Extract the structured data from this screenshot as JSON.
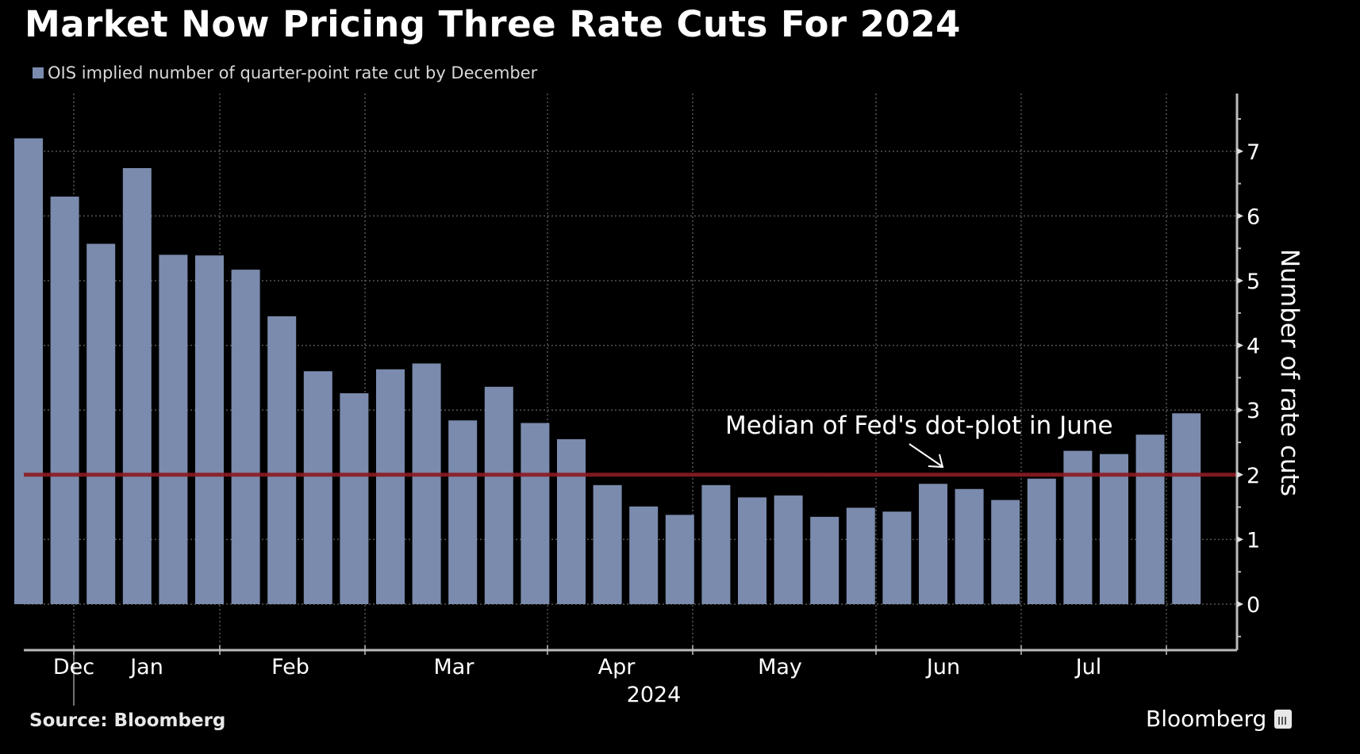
{
  "header": {
    "title": "Market Now Pricing Three Rate Cuts For 2024"
  },
  "footer": {
    "source": "Source: Bloomberg",
    "brand": "Bloomberg"
  },
  "colors": {
    "background": "#000000",
    "bar": "#7a8bad",
    "reference_line": "#8b1a22",
    "grid": "#555555",
    "axis": "#bbbbbb",
    "text": "#ffffff"
  },
  "chart_data": {
    "type": "bar",
    "title": "Market Now Pricing Three Rate Cuts For 2024",
    "legend": [
      {
        "name": "OIS implied number of quarter-point rate cut by December",
        "color": "#7a8bad"
      }
    ],
    "legend_position": "top-left",
    "xlabel": "",
    "ylabel": "Number of rate cuts",
    "y_axis_side": "right",
    "ylim": [
      -0.7,
      7.9
    ],
    "yticks": [
      0,
      1,
      2,
      3,
      4,
      5,
      6,
      7
    ],
    "x_tick_labels": [
      "Dec",
      "Jan",
      "Feb",
      "Mar",
      "Apr",
      "May",
      "Jun",
      "Jul"
    ],
    "x_year_label": "2024",
    "grid": true,
    "series": [
      {
        "name": "OIS implied number of quarter-point rate cut by December",
        "values": [
          7.2,
          6.3,
          5.57,
          6.74,
          5.4,
          5.39,
          5.17,
          4.45,
          3.6,
          3.26,
          3.63,
          3.72,
          2.84,
          3.36,
          2.8,
          2.55,
          1.84,
          1.51,
          1.38,
          1.84,
          1.65,
          1.68,
          1.35,
          1.49,
          1.43,
          1.86,
          1.78,
          1.61,
          1.94,
          2.37,
          2.32,
          2.62,
          2.95
        ]
      }
    ],
    "reference_lines": [
      {
        "value": 2,
        "label": "Median of Fed's dot-plot in June",
        "color": "#8b1a22"
      }
    ],
    "annotations": [
      {
        "text": "Median of Fed's dot-plot in June",
        "points_to": "reference line at 2"
      }
    ]
  }
}
